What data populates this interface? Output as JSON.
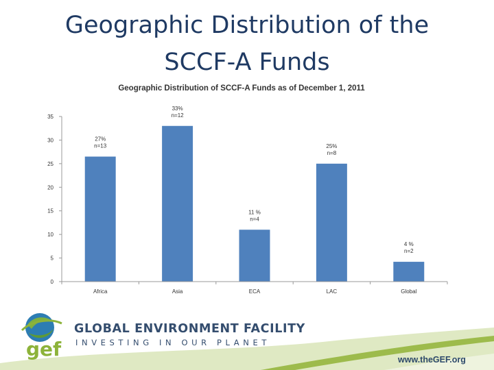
{
  "slide": {
    "title_line1": "Geographic Distribution of the",
    "title_line2": "SCCF-A Funds"
  },
  "chart_data": {
    "type": "bar",
    "title": "Geographic Distribution of SCCF-A Funds as of December 1, 2011",
    "categories": [
      "Africa",
      "Asia",
      "ECA",
      "LAC",
      "Global"
    ],
    "values": [
      26.5,
      33,
      11,
      25,
      4.2
    ],
    "labels": [
      [
        "27%",
        "n=13"
      ],
      [
        "33%",
        "n=12"
      ],
      [
        "11 %",
        "n=4"
      ],
      [
        "25%",
        "n=8"
      ],
      [
        "4 %",
        "n=2"
      ]
    ],
    "yticks": [
      0,
      5,
      10,
      15,
      20,
      25,
      30,
      35
    ],
    "ylim": [
      0,
      35
    ],
    "xlabel": "",
    "ylabel": "",
    "grid": false,
    "bar_color": "#4f81bd"
  },
  "footer": {
    "logo_text": "gef",
    "org_name": "GLOBAL ENVIRONMENT FACILITY",
    "tagline": "INVESTING IN OUR PLANET",
    "url": "www.theGEF.org",
    "colors": {
      "green": "#8db33a",
      "blue": "#344d6e"
    }
  }
}
